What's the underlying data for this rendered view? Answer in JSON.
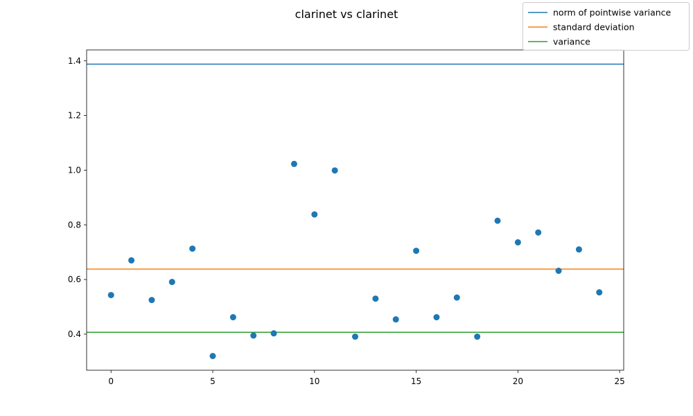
{
  "chart_data": {
    "type": "scatter",
    "title": "clarinet vs clarinet",
    "xlabel": "",
    "ylabel": "",
    "xlim": [
      -1.2,
      25.2
    ],
    "ylim": [
      0.268,
      1.44
    ],
    "x_ticks": [
      0,
      5,
      10,
      15,
      20,
      25
    ],
    "y_ticks": [
      0.4,
      0.6,
      0.8,
      1.0,
      1.2,
      1.4
    ],
    "x_tick_labels": [
      "0",
      "5",
      "10",
      "15",
      "20",
      "25"
    ],
    "y_tick_labels": [
      "0.4",
      "0.6",
      "0.8",
      "1.0",
      "1.2",
      "1.4"
    ],
    "grid": false,
    "legend_position": "top-right",
    "points": {
      "color": "#1f77b4",
      "x": [
        0,
        1,
        2,
        3,
        4,
        5,
        6,
        7,
        8,
        9,
        10,
        11,
        12,
        13,
        14,
        15,
        16,
        17,
        18,
        19,
        20,
        21,
        22,
        23,
        24
      ],
      "y": [
        0.543,
        0.67,
        0.525,
        0.591,
        0.713,
        0.32,
        0.462,
        0.395,
        0.403,
        1.023,
        0.838,
        0.999,
        0.391,
        0.53,
        0.454,
        0.705,
        0.462,
        0.534,
        0.391,
        0.815,
        0.736,
        0.772,
        0.632,
        0.71,
        0.553
      ]
    },
    "lines": [
      {
        "name": "norm of pointwise variance",
        "y": 1.388,
        "color": "#1f77b4"
      },
      {
        "name": "standard deviation",
        "y": 0.638,
        "color": "#ff7f0e"
      },
      {
        "name": "variance",
        "y": 0.407,
        "color": "#2ca02c"
      }
    ]
  }
}
